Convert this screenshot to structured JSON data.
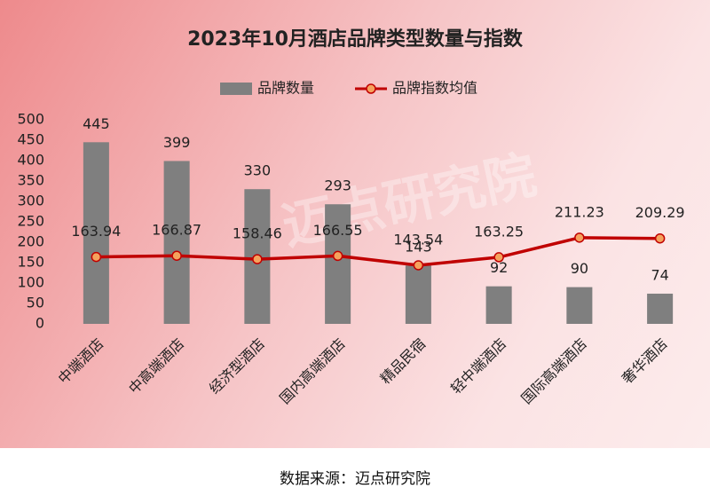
{
  "chart_data": {
    "type": "bar",
    "title": "2023年10月酒店品牌类型数量与指数",
    "categories": [
      "中端酒店",
      "中高端酒店",
      "经济型酒店",
      "国内高端酒店",
      "精品民宿",
      "轻中端酒店",
      "国际高端酒店",
      "奢华酒店"
    ],
    "series": [
      {
        "name": "品牌数量",
        "type": "bar",
        "color": "#7f7f7f",
        "values": [
          445,
          399,
          330,
          293,
          143,
          92,
          90,
          74
        ]
      },
      {
        "name": "品牌指数均值",
        "type": "line",
        "color": "#c00000",
        "marker_color": "#f5a25d",
        "values": [
          163.94,
          166.87,
          158.46,
          166.55,
          143.54,
          163.25,
          211.23,
          209.29
        ]
      }
    ],
    "ylim": [
      0,
      500
    ],
    "yticks": [
      0,
      50,
      100,
      150,
      200,
      250,
      300,
      350,
      400,
      450,
      500
    ],
    "legend": "top",
    "watermark": "迈点研究院",
    "source": "数据来源：迈点研究院"
  }
}
